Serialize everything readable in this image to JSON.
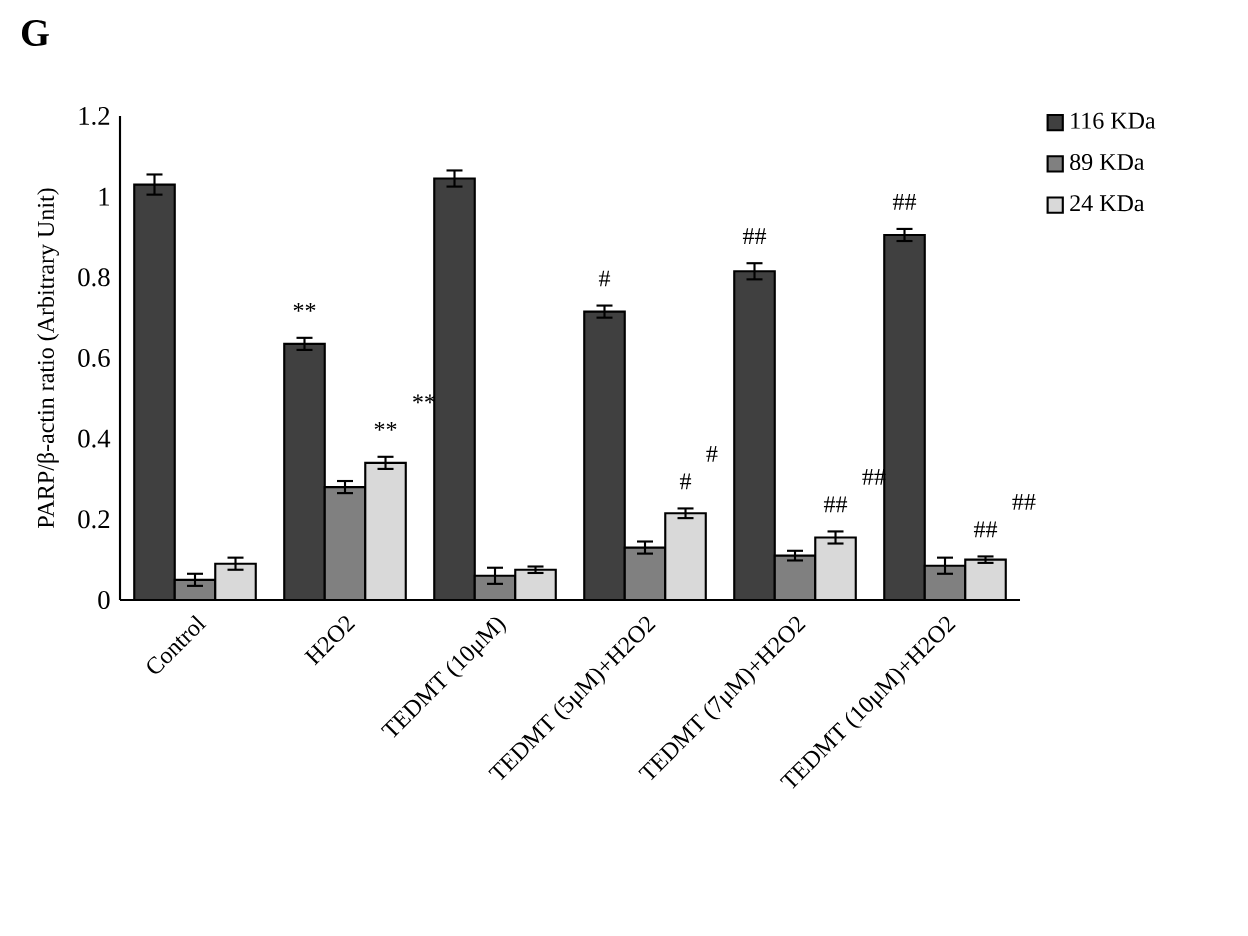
{
  "chart_data": {
    "type": "bar",
    "title": "G",
    "ylabel": "PARP/β-actin ratio (Arbitrary Unit)",
    "categories": [
      "Control",
      "H2O2",
      "TEDMT (10μM)",
      "TEDMT (5μM)+H2O2",
      "TEDMT (7μM)+H2O2",
      "TEDMT (10μM)+H2O2"
    ],
    "series": [
      {
        "name": "116 KDa",
        "color": "#404040",
        "values": [
          1.03,
          0.635,
          1.045,
          0.715,
          0.815,
          0.905
        ],
        "errors": [
          0.025,
          0.015,
          0.02,
          0.015,
          0.02,
          0.015
        ],
        "value_labels": [
          null,
          "**",
          null,
          "#",
          "##",
          "##"
        ]
      },
      {
        "name": "89 KDa",
        "color": "#808080",
        "values": [
          0.05,
          0.28,
          0.06,
          0.13,
          0.11,
          0.085
        ],
        "errors": [
          0.015,
          0.015,
          0.02,
          0.015,
          0.012,
          0.02
        ]
      },
      {
        "name": "24 KDa",
        "color": "#d9d9d9",
        "values": [
          0.09,
          0.34,
          0.075,
          0.215,
          0.155,
          0.1
        ],
        "errors": [
          0.015,
          0.015,
          0.008,
          0.012,
          0.015,
          0.008
        ],
        "value_labels": [
          null,
          "**",
          null,
          "#",
          "##",
          "##"
        ]
      }
    ],
    "ylim": [
      0,
      1.2
    ],
    "yticks": [
      0,
      0.2,
      0.4,
      0.6,
      0.8,
      1,
      1.2
    ],
    "legend": "top right",
    "annotations": [
      "**",
      "#",
      "##",
      "##"
    ]
  }
}
